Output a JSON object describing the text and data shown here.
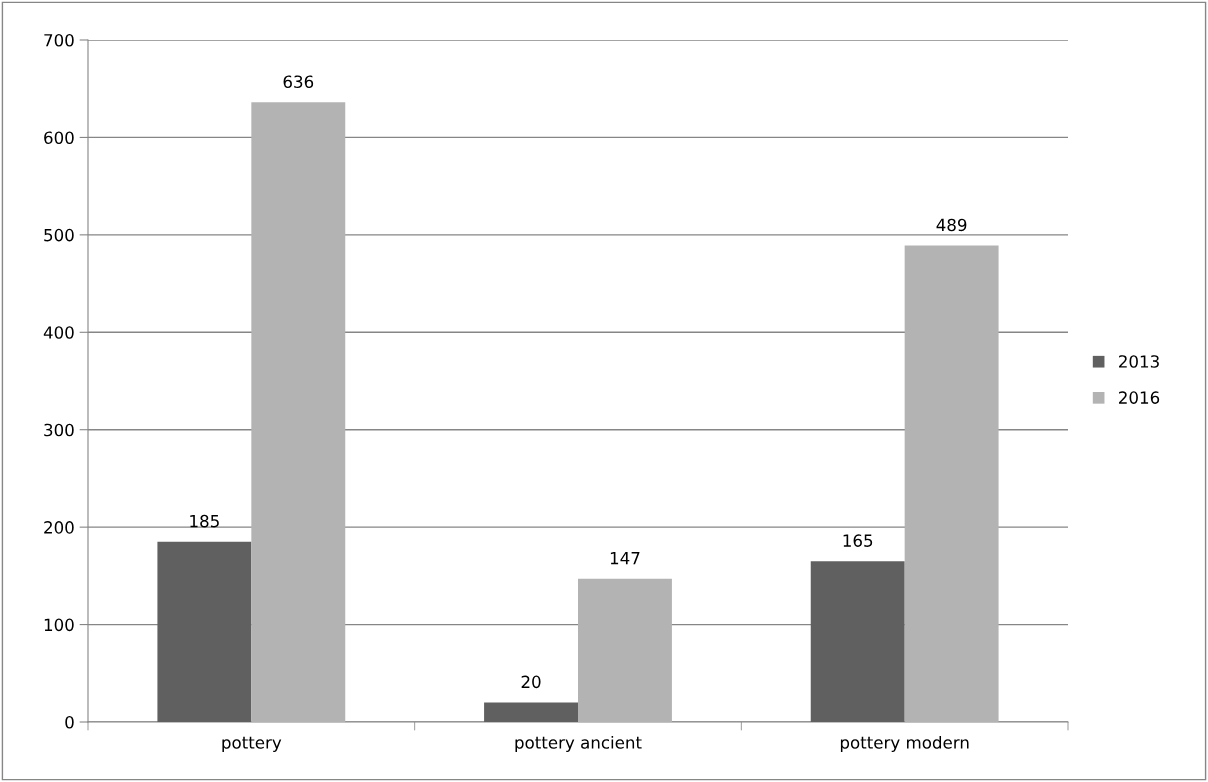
{
  "chart_data": {
    "type": "bar",
    "categories": [
      "pottery",
      "pottery ancient",
      "pottery modern"
    ],
    "series": [
      {
        "name": "2013",
        "color": "#606060",
        "values": [
          185,
          20,
          165
        ]
      },
      {
        "name": "2016",
        "color": "#b3b3b3",
        "values": [
          636,
          147,
          489
        ]
      }
    ],
    "ylim": [
      0,
      700
    ],
    "yticks": [
      0,
      100,
      200,
      300,
      400,
      500,
      600,
      700
    ],
    "grid": "y",
    "legend": "right",
    "data_labels": true
  }
}
